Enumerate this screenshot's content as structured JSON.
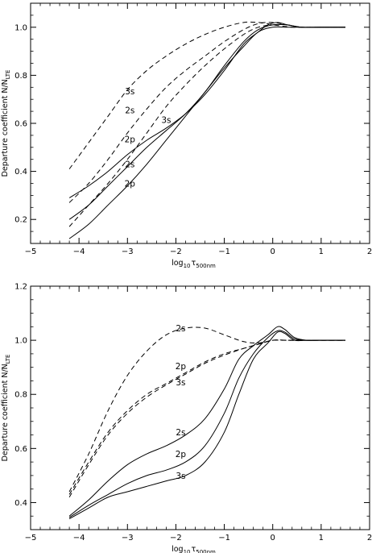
{
  "chart_data": [
    {
      "type": "line",
      "title": "",
      "xlabel_main": "log",
      "xlabel_sub": "10",
      "xlabel_tau": "τ",
      "xlabel_tau_sub": "500nm",
      "ylabel_main": "Departure coefficient N/N",
      "ylabel_sub": "LTE",
      "xlim": [
        -5,
        2
      ],
      "ylim": [
        0.1,
        1.1
      ],
      "xticks": [
        -5,
        -4,
        -3,
        -2,
        -1,
        0,
        1,
        2
      ],
      "xtick_labels": [
        "−5",
        "−4",
        "−3",
        "−2",
        "−1",
        "0",
        "1",
        "2"
      ],
      "yticks": [
        0.2,
        0.4,
        0.6,
        0.8,
        1.0
      ],
      "ytick_labels": [
        "0.2",
        "0.4",
        "0.6",
        "0.8",
        "1.0"
      ],
      "grid": false,
      "series": [
        {
          "name": "3s",
          "style": "dashed",
          "x": [
            -4.2,
            -3.8,
            -3.4,
            -3.0,
            -2.6,
            -2.2,
            -1.8,
            -1.4,
            -1.0,
            -0.6,
            -0.3,
            -0.1,
            0.0,
            0.2,
            0.4,
            0.6,
            1.0,
            1.5
          ],
          "y": [
            0.41,
            0.52,
            0.63,
            0.74,
            0.82,
            0.88,
            0.93,
            0.97,
            1.0,
            1.02,
            1.02,
            1.015,
            1.01,
            1.005,
            1.0,
            1.0,
            1.0,
            1.0
          ]
        },
        {
          "name": "2s",
          "style": "dashed",
          "x": [
            -4.2,
            -3.8,
            -3.4,
            -3.0,
            -2.6,
            -2.2,
            -1.8,
            -1.4,
            -1.0,
            -0.6,
            -0.3,
            0.0,
            0.3,
            0.6,
            1.0,
            1.5
          ],
          "y": [
            0.27,
            0.35,
            0.45,
            0.56,
            0.66,
            0.75,
            0.82,
            0.88,
            0.94,
            0.99,
            1.015,
            1.02,
            1.01,
            1.0,
            1.0,
            1.0
          ]
        },
        {
          "name": "2p",
          "style": "dashed",
          "x": [
            -4.2,
            -3.8,
            -3.4,
            -3.0,
            -2.6,
            -2.2,
            -1.8,
            -1.4,
            -1.0,
            -0.6,
            -0.3,
            0.0,
            0.3,
            0.6,
            1.0,
            1.5
          ],
          "y": [
            0.17,
            0.26,
            0.35,
            0.45,
            0.56,
            0.67,
            0.76,
            0.84,
            0.91,
            0.97,
            1.0,
            1.01,
            1.01,
            1.0,
            1.0,
            1.0
          ]
        },
        {
          "name": "3s",
          "style": "solid",
          "x": [
            -4.2,
            -3.8,
            -3.4,
            -3.0,
            -2.6,
            -2.2,
            -1.8,
            -1.4,
            -1.0,
            -0.6,
            -0.3,
            -0.1,
            0.1,
            0.3,
            0.6,
            1.0,
            1.5
          ],
          "y": [
            0.29,
            0.34,
            0.4,
            0.47,
            0.53,
            0.58,
            0.64,
            0.72,
            0.82,
            0.93,
            0.98,
            1.01,
            1.02,
            1.01,
            1.0,
            1.0,
            1.0
          ]
        },
        {
          "name": "2s",
          "style": "solid",
          "x": [
            -4.2,
            -3.8,
            -3.4,
            -3.0,
            -2.6,
            -2.2,
            -1.8,
            -1.4,
            -1.0,
            -0.6,
            -0.3,
            0.0,
            0.3,
            0.6,
            1.0,
            1.5
          ],
          "y": [
            0.2,
            0.26,
            0.34,
            0.42,
            0.5,
            0.57,
            0.64,
            0.73,
            0.84,
            0.94,
            0.99,
            1.01,
            1.01,
            1.0,
            1.0,
            1.0
          ]
        },
        {
          "name": "2p",
          "style": "solid",
          "x": [
            -4.2,
            -3.8,
            -3.4,
            -3.0,
            -2.6,
            -2.2,
            -1.8,
            -1.4,
            -1.0,
            -0.6,
            -0.3,
            0.0,
            0.3,
            0.6,
            1.0,
            1.5
          ],
          "y": [
            0.12,
            0.18,
            0.26,
            0.34,
            0.43,
            0.53,
            0.63,
            0.73,
            0.83,
            0.92,
            0.98,
            1.0,
            1.0,
            1.0,
            1.0,
            1.0
          ]
        }
      ],
      "annotations": [
        {
          "text": "3s",
          "x": -2.95,
          "y": 0.735
        },
        {
          "text": "2s",
          "x": -2.95,
          "y": 0.655
        },
        {
          "text": "3s",
          "x": -2.2,
          "y": 0.615
        },
        {
          "text": "2p",
          "x": -2.95,
          "y": 0.535
        },
        {
          "text": "2s",
          "x": -2.95,
          "y": 0.43
        },
        {
          "text": "2p",
          "x": -2.95,
          "y": 0.35
        }
      ]
    },
    {
      "type": "line",
      "title": "",
      "xlabel_main": "log",
      "xlabel_sub": "10",
      "xlabel_tau": "τ",
      "xlabel_tau_sub": "500nm",
      "ylabel_main": "Departure coefficient N/N",
      "ylabel_sub": "LTE",
      "xlim": [
        -5,
        2
      ],
      "ylim": [
        0.3,
        1.2
      ],
      "xticks": [
        -5,
        -4,
        -3,
        -2,
        -1,
        0,
        1,
        2
      ],
      "xtick_labels": [
        "−5",
        "−4",
        "−3",
        "−2",
        "−1",
        "0",
        "1",
        "2"
      ],
      "yticks": [
        0.4,
        0.6,
        0.8,
        1.0,
        1.2
      ],
      "ytick_labels": [
        "0.4",
        "0.6",
        "0.8",
        "1.0",
        "1.2"
      ],
      "grid": false,
      "series": [
        {
          "name": "2s",
          "style": "dashed",
          "x": [
            -4.2,
            -3.8,
            -3.4,
            -3.0,
            -2.6,
            -2.2,
            -1.8,
            -1.4,
            -1.0,
            -0.6,
            -0.3,
            0.0,
            0.2,
            0.5,
            1.0,
            1.5
          ],
          "y": [
            0.44,
            0.58,
            0.74,
            0.87,
            0.96,
            1.02,
            1.045,
            1.045,
            1.02,
            0.995,
            0.99,
            1.0,
            1.0,
            1.0,
            1.0,
            1.0
          ]
        },
        {
          "name": "2p",
          "style": "dashed",
          "x": [
            -4.2,
            -3.8,
            -3.4,
            -3.0,
            -2.6,
            -2.2,
            -1.8,
            -1.4,
            -1.0,
            -0.6,
            -0.3,
            0.0,
            0.3,
            0.6,
            1.0,
            1.5
          ],
          "y": [
            0.43,
            0.55,
            0.66,
            0.74,
            0.8,
            0.84,
            0.88,
            0.92,
            0.95,
            0.97,
            0.985,
            1.0,
            1.0,
            1.0,
            1.0,
            1.0
          ]
        },
        {
          "name": "3s",
          "style": "dashed",
          "x": [
            -4.2,
            -3.8,
            -3.4,
            -3.0,
            -2.6,
            -2.2,
            -1.8,
            -1.4,
            -1.0,
            -0.6,
            -0.3,
            0.0,
            0.3,
            0.6,
            1.0,
            1.5
          ],
          "y": [
            0.42,
            0.54,
            0.65,
            0.73,
            0.79,
            0.835,
            0.875,
            0.915,
            0.945,
            0.97,
            0.985,
            1.0,
            1.0,
            1.0,
            1.0,
            1.0
          ]
        },
        {
          "name": "2s",
          "style": "solid",
          "x": [
            -4.2,
            -3.8,
            -3.4,
            -3.0,
            -2.6,
            -2.2,
            -1.8,
            -1.4,
            -1.0,
            -0.7,
            -0.4,
            -0.1,
            0.1,
            0.25,
            0.45,
            0.7,
            1.0,
            1.5
          ],
          "y": [
            0.35,
            0.41,
            0.48,
            0.54,
            0.58,
            0.61,
            0.65,
            0.71,
            0.82,
            0.93,
            0.98,
            1.02,
            1.05,
            1.04,
            1.01,
            1.0,
            1.0,
            1.0
          ]
        },
        {
          "name": "2p",
          "style": "solid",
          "x": [
            -4.2,
            -3.8,
            -3.4,
            -3.0,
            -2.6,
            -2.2,
            -1.8,
            -1.4,
            -1.0,
            -0.7,
            -0.4,
            -0.1,
            0.1,
            0.25,
            0.45,
            0.7,
            1.0,
            1.5
          ],
          "y": [
            0.345,
            0.39,
            0.43,
            0.47,
            0.5,
            0.52,
            0.55,
            0.61,
            0.73,
            0.86,
            0.95,
            1.01,
            1.035,
            1.03,
            1.005,
            1.0,
            1.0,
            1.0
          ]
        },
        {
          "name": "3s",
          "style": "solid",
          "x": [
            -4.2,
            -3.8,
            -3.4,
            -3.0,
            -2.6,
            -2.2,
            -1.8,
            -1.4,
            -1.0,
            -0.7,
            -0.4,
            -0.1,
            0.1,
            0.25,
            0.45,
            0.7,
            1.0,
            1.5
          ],
          "y": [
            0.34,
            0.38,
            0.42,
            0.44,
            0.46,
            0.48,
            0.5,
            0.55,
            0.66,
            0.8,
            0.93,
            0.99,
            1.03,
            1.025,
            1.0,
            1.0,
            1.0,
            1.0
          ]
        }
      ],
      "annotations": [
        {
          "text": "2s",
          "x": -1.9,
          "y": 1.045
        },
        {
          "text": "2p",
          "x": -1.9,
          "y": 0.905
        },
        {
          "text": "3s",
          "x": -1.9,
          "y": 0.845
        },
        {
          "text": "2s",
          "x": -1.9,
          "y": 0.66
        },
        {
          "text": "2p",
          "x": -1.9,
          "y": 0.58
        },
        {
          "text": "3s",
          "x": -1.9,
          "y": 0.5
        }
      ]
    }
  ]
}
